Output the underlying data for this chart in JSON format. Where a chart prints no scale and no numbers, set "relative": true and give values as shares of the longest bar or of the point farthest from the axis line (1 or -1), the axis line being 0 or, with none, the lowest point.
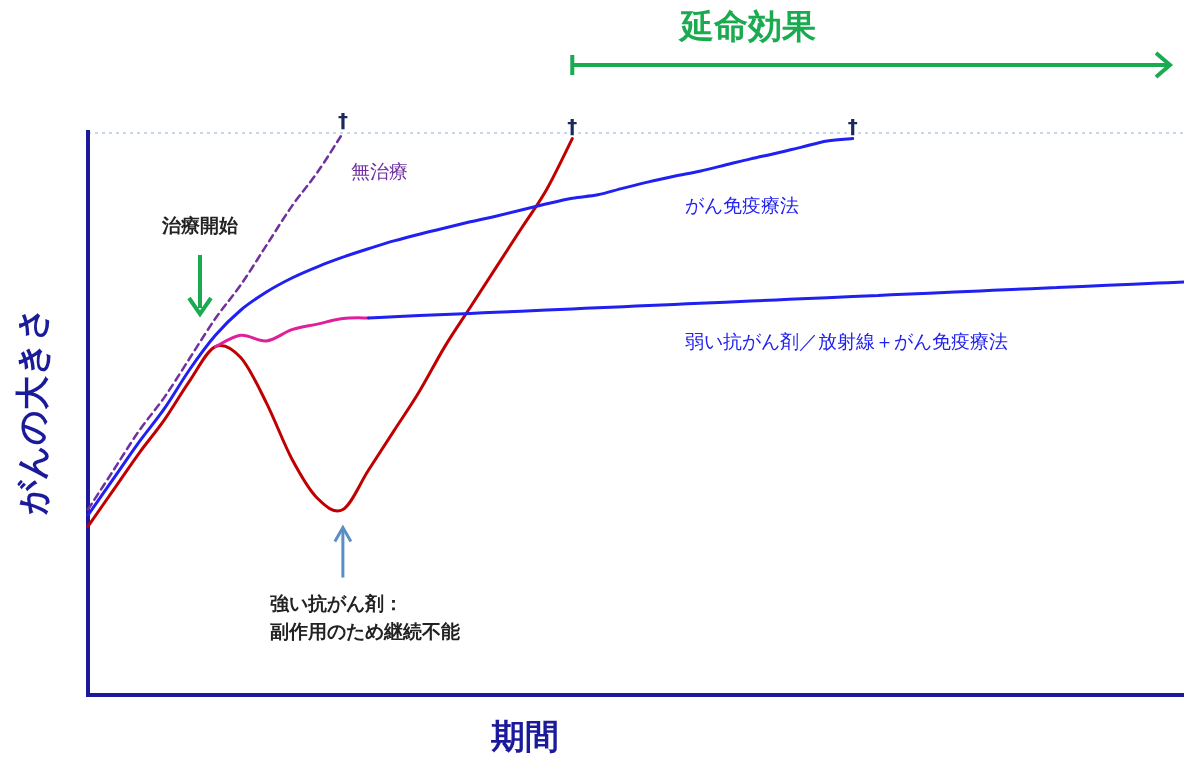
{
  "chart_data": {
    "type": "line",
    "relative": true,
    "xlabel": "期間",
    "ylabel": "がんの大きさ",
    "categories": [
      null,
      null,
      null,
      null,
      null,
      null,
      null,
      null,
      null,
      null,
      null,
      null,
      null,
      null,
      null,
      null,
      null,
      null,
      null,
      null,
      null,
      null,
      null,
      null,
      null,
      null,
      null,
      null,
      null,
      null,
      null,
      null,
      null,
      null,
      null,
      null,
      null,
      null,
      null,
      null,
      null,
      null,
      null,
      null
    ],
    "series": [
      {
        "name": "無治療",
        "color": "#7030a0",
        "line_style": "dashed",
        "values": [
          0.33,
          0.4,
          0.47,
          0.53,
          0.6,
          0.67,
          0.73,
          0.8,
          0.87,
          0.93,
          1.0,
          null,
          null,
          null,
          null,
          null,
          null,
          null,
          null,
          null,
          null,
          null,
          null,
          null,
          null,
          null,
          null,
          null,
          null,
          null,
          null,
          null,
          null,
          null,
          null,
          null,
          null,
          null,
          null,
          null,
          null,
          null,
          null,
          null
        ]
      },
      {
        "color": "#c00000",
        "values": [
          0.3,
          0.365,
          0.43,
          0.49,
          0.56,
          0.62,
          0.6,
          0.52,
          0.42,
          0.35,
          0.33,
          0.4,
          0.47,
          0.54,
          0.62,
          0.69,
          0.76,
          0.83,
          0.9,
          0.99,
          null,
          null,
          null,
          null,
          null,
          null,
          null,
          null,
          null,
          null,
          null,
          null,
          null,
          null,
          null,
          null,
          null,
          null,
          null,
          null,
          null,
          null,
          null,
          null
        ]
      },
      {
        "name": "がん免疫療法",
        "color": "#2020f0",
        "values": [
          0.32,
          0.385,
          0.45,
          0.51,
          0.58,
          0.64,
          0.685,
          0.717,
          0.742,
          0.762,
          0.779,
          0.794,
          0.808,
          0.82,
          0.831,
          0.842,
          0.852,
          0.863,
          0.874,
          0.884,
          0.89,
          0.902,
          0.913,
          0.923,
          0.932,
          0.943,
          0.954,
          0.964,
          0.975,
          0.986,
          0.99,
          null,
          null,
          null,
          null,
          null,
          null,
          null,
          null,
          null,
          null,
          null,
          null,
          null
        ]
      },
      {
        "color": "#e0209a",
        "values": [
          null,
          null,
          null,
          null,
          null,
          0.62,
          0.64,
          0.63,
          0.65,
          0.66,
          0.67,
          0.671,
          null,
          null,
          null,
          null,
          null,
          null,
          null,
          null,
          null,
          null,
          null,
          null,
          null,
          null,
          null,
          null,
          null,
          null,
          null,
          null,
          null,
          null,
          null,
          null,
          null,
          null,
          null,
          null,
          null,
          null,
          null,
          null
        ]
      },
      {
        "name": "弱い抗がん剤／放射線＋がん免疫療法",
        "color": "#2020f0",
        "values": [
          null,
          null,
          null,
          null,
          null,
          null,
          null,
          null,
          null,
          null,
          null,
          0.671,
          0.673,
          0.675,
          0.677,
          0.679,
          0.681,
          0.683,
          0.685,
          0.687,
          0.689,
          0.691,
          0.693,
          0.695,
          0.697,
          0.699,
          0.701,
          0.703,
          0.705,
          0.707,
          0.709,
          0.711,
          0.713,
          0.715,
          0.717,
          0.719,
          0.721,
          0.723,
          0.725,
          0.727,
          0.729,
          0.731,
          0.733,
          0.735
        ]
      }
    ],
    "ref_lines": [
      {
        "axis": "y",
        "value": 1,
        "color": "#8fb0d8",
        "line_style": "dotted"
      }
    ],
    "annotations": [
      "延命効果",
      "治療開始",
      "強い抗がん剤：",
      "副作用のため継続不能",
      "†",
      "†",
      "†"
    ]
  }
}
